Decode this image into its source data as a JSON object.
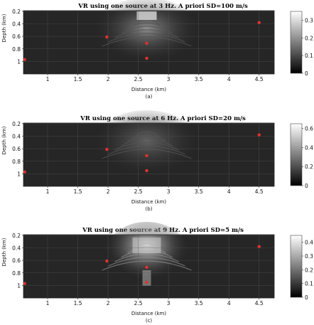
{
  "chart_data": [
    {
      "type": "heatmap",
      "title": "VR using one source at 3 Hz. A priori SD=100 m/s",
      "xlabel": "Distance (km)",
      "ylabel": "Depth (km)",
      "caption": "(a)",
      "xlim": [
        0.6,
        4.75
      ],
      "ylim": [
        0.19,
        1.2
      ],
      "y_inverted": true,
      "xticks": [
        1,
        1.5,
        2,
        2.5,
        3,
        3.5,
        4,
        4.5
      ],
      "yticks": [
        0.2,
        0.4,
        0.6,
        0.8,
        1
      ],
      "colorbar": {
        "min": 0,
        "max": 0.35,
        "ticks": [
          0,
          0.1,
          0.2,
          0.3
        ]
      },
      "grid": true,
      "colormap": "gray",
      "markers": {
        "color": "#e0322c",
        "points": [
          {
            "x": 0.62,
            "y": 0.97
          },
          {
            "x": 1.98,
            "y": 0.61
          },
          {
            "x": 2.64,
            "y": 0.71
          },
          {
            "x": 2.64,
            "y": 0.95
          },
          {
            "x": 4.5,
            "y": 0.38
          }
        ]
      }
    },
    {
      "type": "heatmap",
      "title": "VR using one source at 6 Hz. A priori SD=20 m/s",
      "xlabel": "Distance (km)",
      "ylabel": "Depth (km)",
      "caption": "(b)",
      "xlim": [
        0.6,
        4.75
      ],
      "ylim": [
        0.19,
        1.2
      ],
      "y_inverted": true,
      "xticks": [
        1,
        1.5,
        2,
        2.5,
        3,
        3.5,
        4,
        4.5
      ],
      "yticks": [
        0.2,
        0.4,
        0.6,
        0.8,
        1
      ],
      "colorbar": {
        "min": 0,
        "max": 0.65,
        "ticks": [
          0,
          0.2,
          0.4,
          0.6
        ]
      },
      "grid": true,
      "colormap": "gray",
      "markers": {
        "color": "#e0322c",
        "points": [
          {
            "x": 0.62,
            "y": 0.97
          },
          {
            "x": 1.98,
            "y": 0.61
          },
          {
            "x": 2.64,
            "y": 0.71
          },
          {
            "x": 2.64,
            "y": 0.95
          },
          {
            "x": 4.5,
            "y": 0.38
          }
        ]
      }
    },
    {
      "type": "heatmap",
      "title": "VR using one source at 9 Hz. A priori SD=5 m/s",
      "xlabel": "Distance (km)",
      "ylabel": "Depth (km)",
      "caption": "(c)",
      "xlim": [
        0.6,
        4.75
      ],
      "ylim": [
        0.19,
        1.2
      ],
      "y_inverted": true,
      "xticks": [
        1,
        1.5,
        2,
        2.5,
        3,
        3.5,
        4,
        4.5
      ],
      "yticks": [
        0.2,
        0.4,
        0.6,
        0.8,
        1
      ],
      "colorbar": {
        "min": 0,
        "max": 0.45,
        "ticks": [
          0,
          0.1,
          0.2,
          0.3,
          0.4
        ]
      },
      "grid": true,
      "colormap": "gray",
      "markers": {
        "color": "#e0322c",
        "points": [
          {
            "x": 0.62,
            "y": 0.97
          },
          {
            "x": 1.98,
            "y": 0.61
          },
          {
            "x": 2.64,
            "y": 0.71
          },
          {
            "x": 2.64,
            "y": 0.95
          },
          {
            "x": 4.5,
            "y": 0.38
          }
        ]
      }
    }
  ]
}
